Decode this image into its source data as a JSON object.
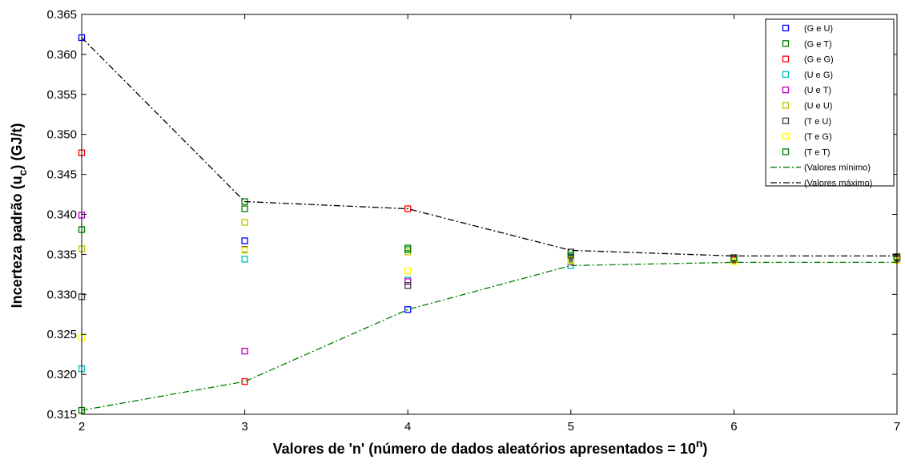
{
  "chart_data": {
    "type": "scatter",
    "title": "",
    "xlabel_main": "Valores de 'n' (número de dados aleatórios apresentados = 10",
    "xlabel_sup": "n",
    "xlabel_end": ")",
    "ylabel_main": "Incerteza padrão (u",
    "ylabel_sub": "c",
    "ylabel_end": ") (GJ/t)",
    "xlim": [
      2,
      7
    ],
    "ylim": [
      0.315,
      0.365
    ],
    "xticks": [
      2,
      3,
      4,
      5,
      6,
      7
    ],
    "xtick_labels": [
      "2",
      "3",
      "4",
      "5",
      "6",
      "7"
    ],
    "yticks": [
      0.315,
      0.32,
      0.325,
      0.33,
      0.335,
      0.34,
      0.345,
      0.35,
      0.355,
      0.36,
      0.365
    ],
    "ytick_labels": [
      "0.315",
      "0.320",
      "0.325",
      "0.330",
      "0.335",
      "0.340",
      "0.345",
      "0.350",
      "0.355",
      "0.360",
      "0.365"
    ],
    "grid": false,
    "legend_position": "top-right",
    "series": [
      {
        "name": "(G e U)",
        "kind": "marker",
        "color": "#0000ff",
        "x": [
          2,
          3,
          4,
          5,
          6,
          7
        ],
        "y": [
          0.3621,
          0.3367,
          0.3281,
          0.3345,
          0.3343,
          0.3346
        ]
      },
      {
        "name": "(G e T)",
        "kind": "marker",
        "color": "#007f00",
        "x": [
          2,
          3,
          4,
          5,
          6,
          7
        ],
        "y": [
          0.3381,
          0.3407,
          0.3358,
          0.3347,
          0.3345,
          0.3347
        ]
      },
      {
        "name": "(G e G)",
        "kind": "marker",
        "color": "#ff0000",
        "x": [
          2,
          3,
          4,
          5,
          6,
          7
        ],
        "y": [
          0.3477,
          0.3191,
          0.3407,
          0.3343,
          0.3344,
          0.3345
        ]
      },
      {
        "name": "(U e G)",
        "kind": "marker",
        "color": "#00bfbf",
        "x": [
          2,
          3,
          4,
          5,
          6,
          7
        ],
        "y": [
          0.3207,
          0.3344,
          0.3318,
          0.3336,
          0.3342,
          0.3344
        ]
      },
      {
        "name": "(U e T)",
        "kind": "marker",
        "color": "#bf00bf",
        "x": [
          2,
          3,
          4,
          5,
          6,
          7
        ],
        "y": [
          0.3399,
          0.3229,
          0.3316,
          0.3341,
          0.3343,
          0.3344
        ]
      },
      {
        "name": "(U e U)",
        "kind": "marker",
        "color": "#bfbf00",
        "x": [
          2,
          3,
          4,
          5,
          6,
          7
        ],
        "y": [
          0.3357,
          0.339,
          0.3353,
          0.3344,
          0.3342,
          0.3343
        ]
      },
      {
        "name": "(T e U)",
        "kind": "marker",
        "color": "#404040",
        "x": [
          2,
          3,
          4,
          5,
          6,
          7
        ],
        "y": [
          0.3297,
          0.3356,
          0.3311,
          0.3353,
          0.3346,
          0.3347
        ]
      },
      {
        "name": "(T e G)",
        "kind": "marker",
        "color": "#ffff00",
        "x": [
          2,
          3,
          4,
          5,
          6,
          7
        ],
        "y": [
          0.3246,
          0.3355,
          0.3329,
          0.3342,
          0.3341,
          0.3342
        ]
      },
      {
        "name": "(T e T)",
        "kind": "marker",
        "color": "#008000",
        "x": [
          2,
          3,
          4,
          5,
          6,
          7
        ],
        "y": [
          0.3155,
          0.3416,
          0.3356,
          0.3349,
          0.3345,
          0.3346
        ]
      },
      {
        "name": "(Valores mínimo)",
        "kind": "line",
        "color": "#008000",
        "dash": "dashdot",
        "x": [
          2,
          3,
          4,
          5,
          6,
          7
        ],
        "y": [
          0.3155,
          0.3191,
          0.3281,
          0.3336,
          0.334,
          0.334
        ]
      },
      {
        "name": "(Valores máximo)",
        "kind": "line",
        "color": "#000000",
        "dash": "dashdot",
        "x": [
          2,
          3,
          4,
          5,
          6,
          7
        ],
        "y": [
          0.3621,
          0.3416,
          0.3407,
          0.3355,
          0.3348,
          0.3348
        ]
      }
    ]
  }
}
